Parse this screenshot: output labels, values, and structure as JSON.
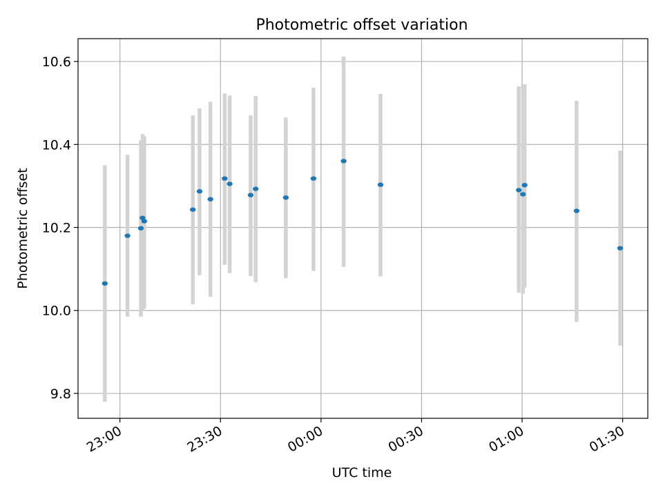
{
  "chart_data": {
    "type": "scatter",
    "title": "Photometric offset variation",
    "xlabel": "UTC time",
    "ylabel": "Photometric offset",
    "x_ticks": [
      "23:00",
      "23:30",
      "00:00",
      "00:30",
      "01:00",
      "01:30"
    ],
    "y_ticks": [
      "9.8",
      "10.0",
      "10.2",
      "10.4",
      "10.6"
    ],
    "xlim": [
      "22:47:30",
      "01:37:30"
    ],
    "ylim": [
      9.74,
      10.655
    ],
    "grid": true,
    "legend": "none",
    "point_color": "#1f77b4",
    "errorbar_color": "#d3d3d3",
    "points": [
      {
        "time": "22:55:30",
        "value": 10.065,
        "err_low": 9.78,
        "err_high": 10.35
      },
      {
        "time": "23:02:15",
        "value": 10.18,
        "err_low": 9.985,
        "err_high": 10.375
      },
      {
        "time": "23:06:15",
        "value": 10.198,
        "err_low": 9.985,
        "err_high": 10.41
      },
      {
        "time": "23:06:45",
        "value": 10.223,
        "err_low": 10.0,
        "err_high": 10.425
      },
      {
        "time": "23:07:15",
        "value": 10.215,
        "err_low": 10.005,
        "err_high": 10.42
      },
      {
        "time": "23:21:45",
        "value": 10.243,
        "err_low": 10.015,
        "err_high": 10.47
      },
      {
        "time": "23:23:45",
        "value": 10.287,
        "err_low": 10.085,
        "err_high": 10.487
      },
      {
        "time": "23:27:00",
        "value": 10.268,
        "err_low": 10.033,
        "err_high": 10.503
      },
      {
        "time": "23:31:15",
        "value": 10.318,
        "err_low": 10.11,
        "err_high": 10.523
      },
      {
        "time": "23:32:45",
        "value": 10.305,
        "err_low": 10.09,
        "err_high": 10.518
      },
      {
        "time": "23:39:00",
        "value": 10.278,
        "err_low": 10.083,
        "err_high": 10.47
      },
      {
        "time": "23:40:30",
        "value": 10.293,
        "err_low": 10.068,
        "err_high": 10.517
      },
      {
        "time": "23:49:30",
        "value": 10.272,
        "err_low": 10.078,
        "err_high": 10.465
      },
      {
        "time": "23:57:45",
        "value": 10.318,
        "err_low": 10.095,
        "err_high": 10.537
      },
      {
        "time": "00:06:45",
        "value": 10.36,
        "err_low": 10.105,
        "err_high": 10.612
      },
      {
        "time": "00:17:45",
        "value": 10.303,
        "err_low": 10.082,
        "err_high": 10.522
      },
      {
        "time": "00:59:00",
        "value": 10.29,
        "err_low": 10.043,
        "err_high": 10.54
      },
      {
        "time": "01:00:15",
        "value": 10.28,
        "err_low": 10.04,
        "err_high": 10.545
      },
      {
        "time": "01:00:45",
        "value": 10.302,
        "err_low": 10.055,
        "err_high": 10.545
      },
      {
        "time": "01:16:15",
        "value": 10.24,
        "err_low": 9.972,
        "err_high": 10.505
      },
      {
        "time": "01:29:15",
        "value": 10.15,
        "err_low": 9.915,
        "err_high": 10.385
      }
    ]
  }
}
